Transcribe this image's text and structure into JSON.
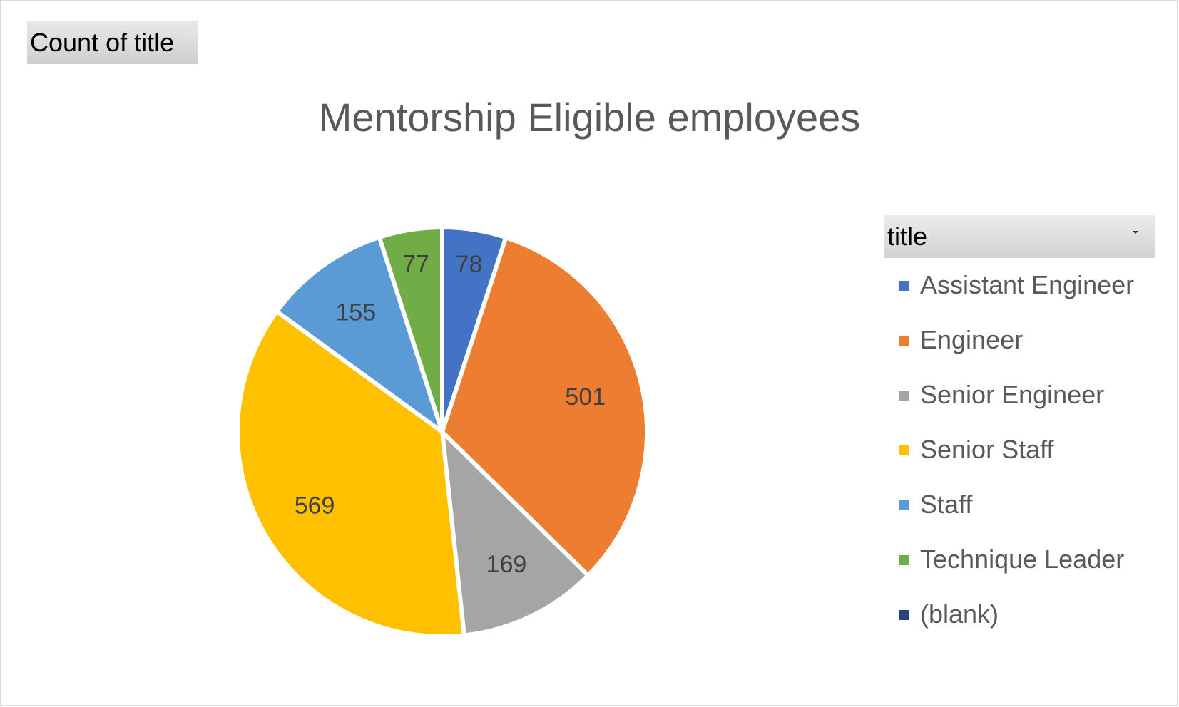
{
  "field_button": "Count of title",
  "legend": {
    "header": "title",
    "dropdown_icon": "dropdown-arrow-icon"
  },
  "chart_data": {
    "type": "pie",
    "title": "Mentorship Eligible employees",
    "categories": [
      "Assistant Engineer",
      "Engineer",
      "Senior Engineer",
      "Senior Staff",
      "Staff",
      "Technique Leader",
      "(blank)"
    ],
    "values": [
      78,
      501,
      169,
      569,
      155,
      77,
      0
    ],
    "data_labels": [
      "78",
      "501",
      "169",
      "569",
      "155",
      "77",
      ""
    ],
    "colors": [
      "#4472C4",
      "#ED7D31",
      "#A5A5A5",
      "#FFC000",
      "#5B9BD5",
      "#70AD47",
      "#264478"
    ],
    "legend_position": "right"
  }
}
